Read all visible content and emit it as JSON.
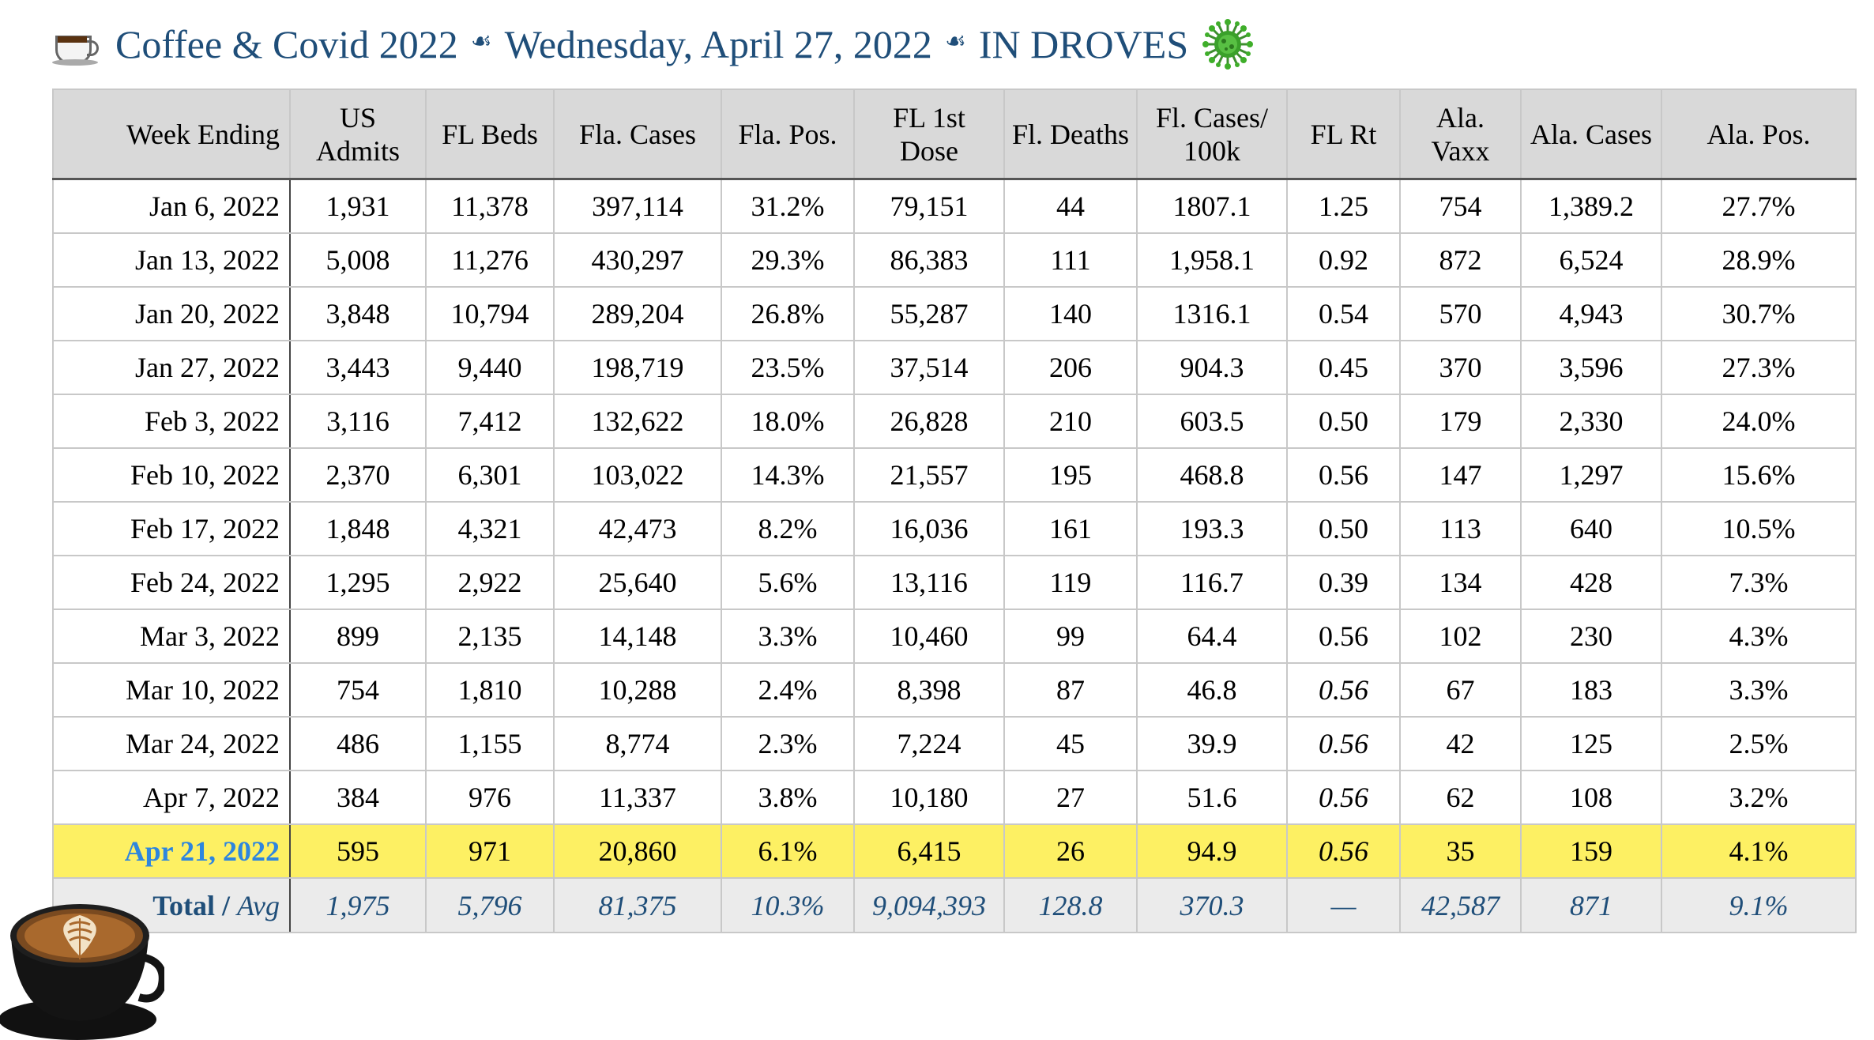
{
  "header": {
    "left_title": "Coffee & Covid 2022",
    "date": "Wednesday, April 27, 2022",
    "headline": "IN DROVES",
    "separator": "☙",
    "icons": [
      "coffee-cup-icon",
      "virus-icon"
    ]
  },
  "table": {
    "columns": [
      "Week Ending",
      "US Admits",
      "FL Beds",
      "Fla. Cases",
      "Fla. Pos.",
      "FL 1st Dose",
      "Fl. Deaths",
      "Fl. Cases/ 100k",
      "FL Rt",
      "Ala. Vaxx",
      "Ala. Cases",
      "Ala. Pos."
    ],
    "rows": [
      [
        "Jan 6, 2022",
        "1,931",
        "11,378",
        "397,114",
        "31.2%",
        "79,151",
        "44",
        "1807.1",
        "1.25",
        "754",
        "1,389.2",
        "27.7%"
      ],
      [
        "Jan 13, 2022",
        "5,008",
        "11,276",
        "430,297",
        "29.3%",
        "86,383",
        "111",
        "1,958.1",
        "0.92",
        "872",
        "6,524",
        "28.9%"
      ],
      [
        "Jan 20, 2022",
        "3,848",
        "10,794",
        "289,204",
        "26.8%",
        "55,287",
        "140",
        "1316.1",
        "0.54",
        "570",
        "4,943",
        "30.7%"
      ],
      [
        "Jan 27, 2022",
        "3,443",
        "9,440",
        "198,719",
        "23.5%",
        "37,514",
        "206",
        "904.3",
        "0.45",
        "370",
        "3,596",
        "27.3%"
      ],
      [
        "Feb 3, 2022",
        "3,116",
        "7,412",
        "132,622",
        "18.0%",
        "26,828",
        "210",
        "603.5",
        "0.50",
        "179",
        "2,330",
        "24.0%"
      ],
      [
        "Feb 10, 2022",
        "2,370",
        "6,301",
        "103,022",
        "14.3%",
        "21,557",
        "195",
        "468.8",
        "0.56",
        "147",
        "1,297",
        "15.6%"
      ],
      [
        "Feb 17, 2022",
        "1,848",
        "4,321",
        "42,473",
        "8.2%",
        "16,036",
        "161",
        "193.3",
        "0.50",
        "113",
        "640",
        "10.5%"
      ],
      [
        "Feb 24, 2022",
        "1,295",
        "2,922",
        "25,640",
        "5.6%",
        "13,116",
        "119",
        "116.7",
        "0.39",
        "134",
        "428",
        "7.3%"
      ],
      [
        "Mar 3, 2022",
        "899",
        "2,135",
        "14,148",
        "3.3%",
        "10,460",
        "99",
        "64.4",
        "0.56",
        "102",
        "230",
        "4.3%"
      ],
      [
        "Mar 10, 2022",
        "754",
        "1,810",
        "10,288",
        "2.4%",
        "8,398",
        "87",
        "46.8",
        "0.56",
        "67",
        "183",
        "3.3%"
      ],
      [
        "Mar 24, 2022",
        "486",
        "1,155",
        "8,774",
        "2.3%",
        "7,224",
        "45",
        "39.9",
        "0.56",
        "42",
        "125",
        "2.5%"
      ],
      [
        "Apr 7, 2022",
        "384",
        "976",
        "11,337",
        "3.8%",
        "10,180",
        "27",
        "51.6",
        "0.56",
        "62",
        "108",
        "3.2%"
      ]
    ],
    "highlight_row": [
      "Apr 21, 2022",
      "595",
      "971",
      "20,860",
      "6.1%",
      "6,415",
      "26",
      "94.9",
      "0.56",
      "35",
      "159",
      "4.1%"
    ],
    "total_row": {
      "label": "Total",
      "label_sep": " / ",
      "label_avg": "Avg",
      "values": [
        "1,975",
        "5,796",
        "81,375",
        "10.3%",
        "9,094,393",
        "128.8",
        "370.3",
        "—",
        "42,587",
        "871",
        "9.1%"
      ]
    },
    "italic_rt_from_row": 9,
    "highlight_color": "#fdf063",
    "header_bg": "#d9d9d9",
    "title_color": "#1f4e79",
    "highlight_text_color": "#2e86de"
  },
  "image_decor": "latte-art-cup-image"
}
